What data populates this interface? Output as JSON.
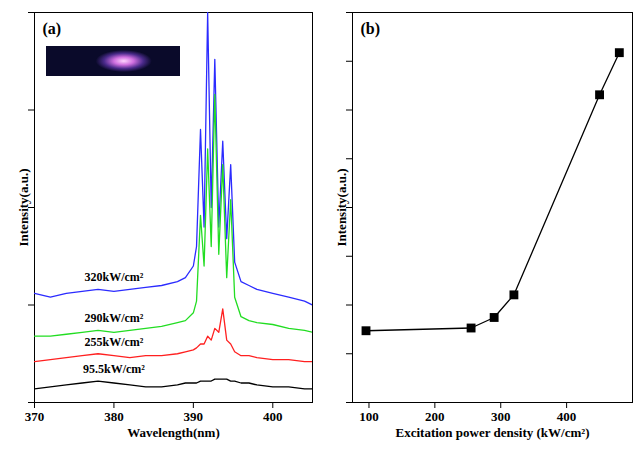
{
  "chart_data": [
    {
      "type": "line",
      "title": "(a)",
      "xlabel": "Wavelength(nm)",
      "ylabel": "Intensity(a.u.)",
      "x": [
        370,
        372,
        374,
        376,
        378,
        380,
        382,
        384,
        386,
        388,
        389,
        390,
        390.4,
        390.9,
        391.35,
        391.8,
        392.25,
        392.7,
        393.2,
        393.7,
        394.2,
        394.7,
        395.2,
        396,
        397,
        398,
        400,
        402,
        404,
        405
      ],
      "series": [
        {
          "name": "320kW/cm²",
          "color": "#2b2bff",
          "values": [
            28,
            27,
            28,
            28.5,
            29,
            28.5,
            29,
            29.5,
            30,
            31,
            32,
            35,
            40,
            70,
            45,
            100,
            50,
            88,
            45,
            67,
            42,
            61,
            36,
            31,
            30,
            29,
            28,
            27,
            26,
            25
          ]
        },
        {
          "name": "290kW/cm²",
          "color": "#22dd22",
          "values": [
            17,
            17,
            17.5,
            18,
            18.5,
            18,
            18.5,
            19,
            19.5,
            20.5,
            21,
            23,
            26,
            48,
            35,
            65,
            40,
            79,
            38,
            61,
            32,
            52,
            27,
            22,
            21,
            20.5,
            20,
            19,
            18.5,
            18
          ]
        },
        {
          "name": "255kW/cm²",
          "color": "#ff2020",
          "values": [
            10.5,
            11,
            11.5,
            12,
            12.5,
            12,
            11.5,
            12,
            12,
            12.5,
            13,
            13.5,
            14,
            15,
            15,
            17,
            16,
            19,
            18,
            24,
            16,
            15,
            13,
            12,
            12,
            11.5,
            11,
            11,
            10.5,
            10.5
          ]
        },
        {
          "name": "95.5kW/cm²",
          "color": "#000000",
          "values": [
            3.5,
            4,
            4.5,
            5,
            5.5,
            5,
            4.5,
            4,
            4,
            4.5,
            5,
            5,
            5,
            5.5,
            5.5,
            5.5,
            5.5,
            6,
            6,
            6,
            6,
            5.5,
            5.5,
            5,
            5,
            4.5,
            4,
            4,
            3.5,
            3.5
          ]
        }
      ],
      "xlim": [
        370,
        405
      ],
      "xticks": [
        370,
        380,
        390,
        400
      ],
      "ylim": [
        0,
        100
      ],
      "yticks": [
        0,
        25,
        50,
        75,
        100
      ],
      "tick_labels": "x",
      "line_style": "solid"
    },
    {
      "type": "line",
      "title": "(b)",
      "xlabel": "Excitation power density (kW/cm²)",
      "ylabel": "Intensity(a.u.)",
      "x": [
        95.5,
        255,
        290,
        320,
        450,
        480
      ],
      "values": [
        18.4,
        19.1,
        21.8,
        27.6,
        78.9,
        89.7
      ],
      "color": "#000000",
      "marker": "square",
      "line_style": "solid",
      "xlim": [
        75,
        500
      ],
      "xticks": [
        100,
        200,
        300,
        400
      ],
      "ylim": [
        0,
        100
      ],
      "yticks": [
        0,
        12.5,
        25,
        37.5,
        50,
        62.5,
        75,
        87.5,
        100
      ],
      "tick_labels": "x"
    }
  ]
}
